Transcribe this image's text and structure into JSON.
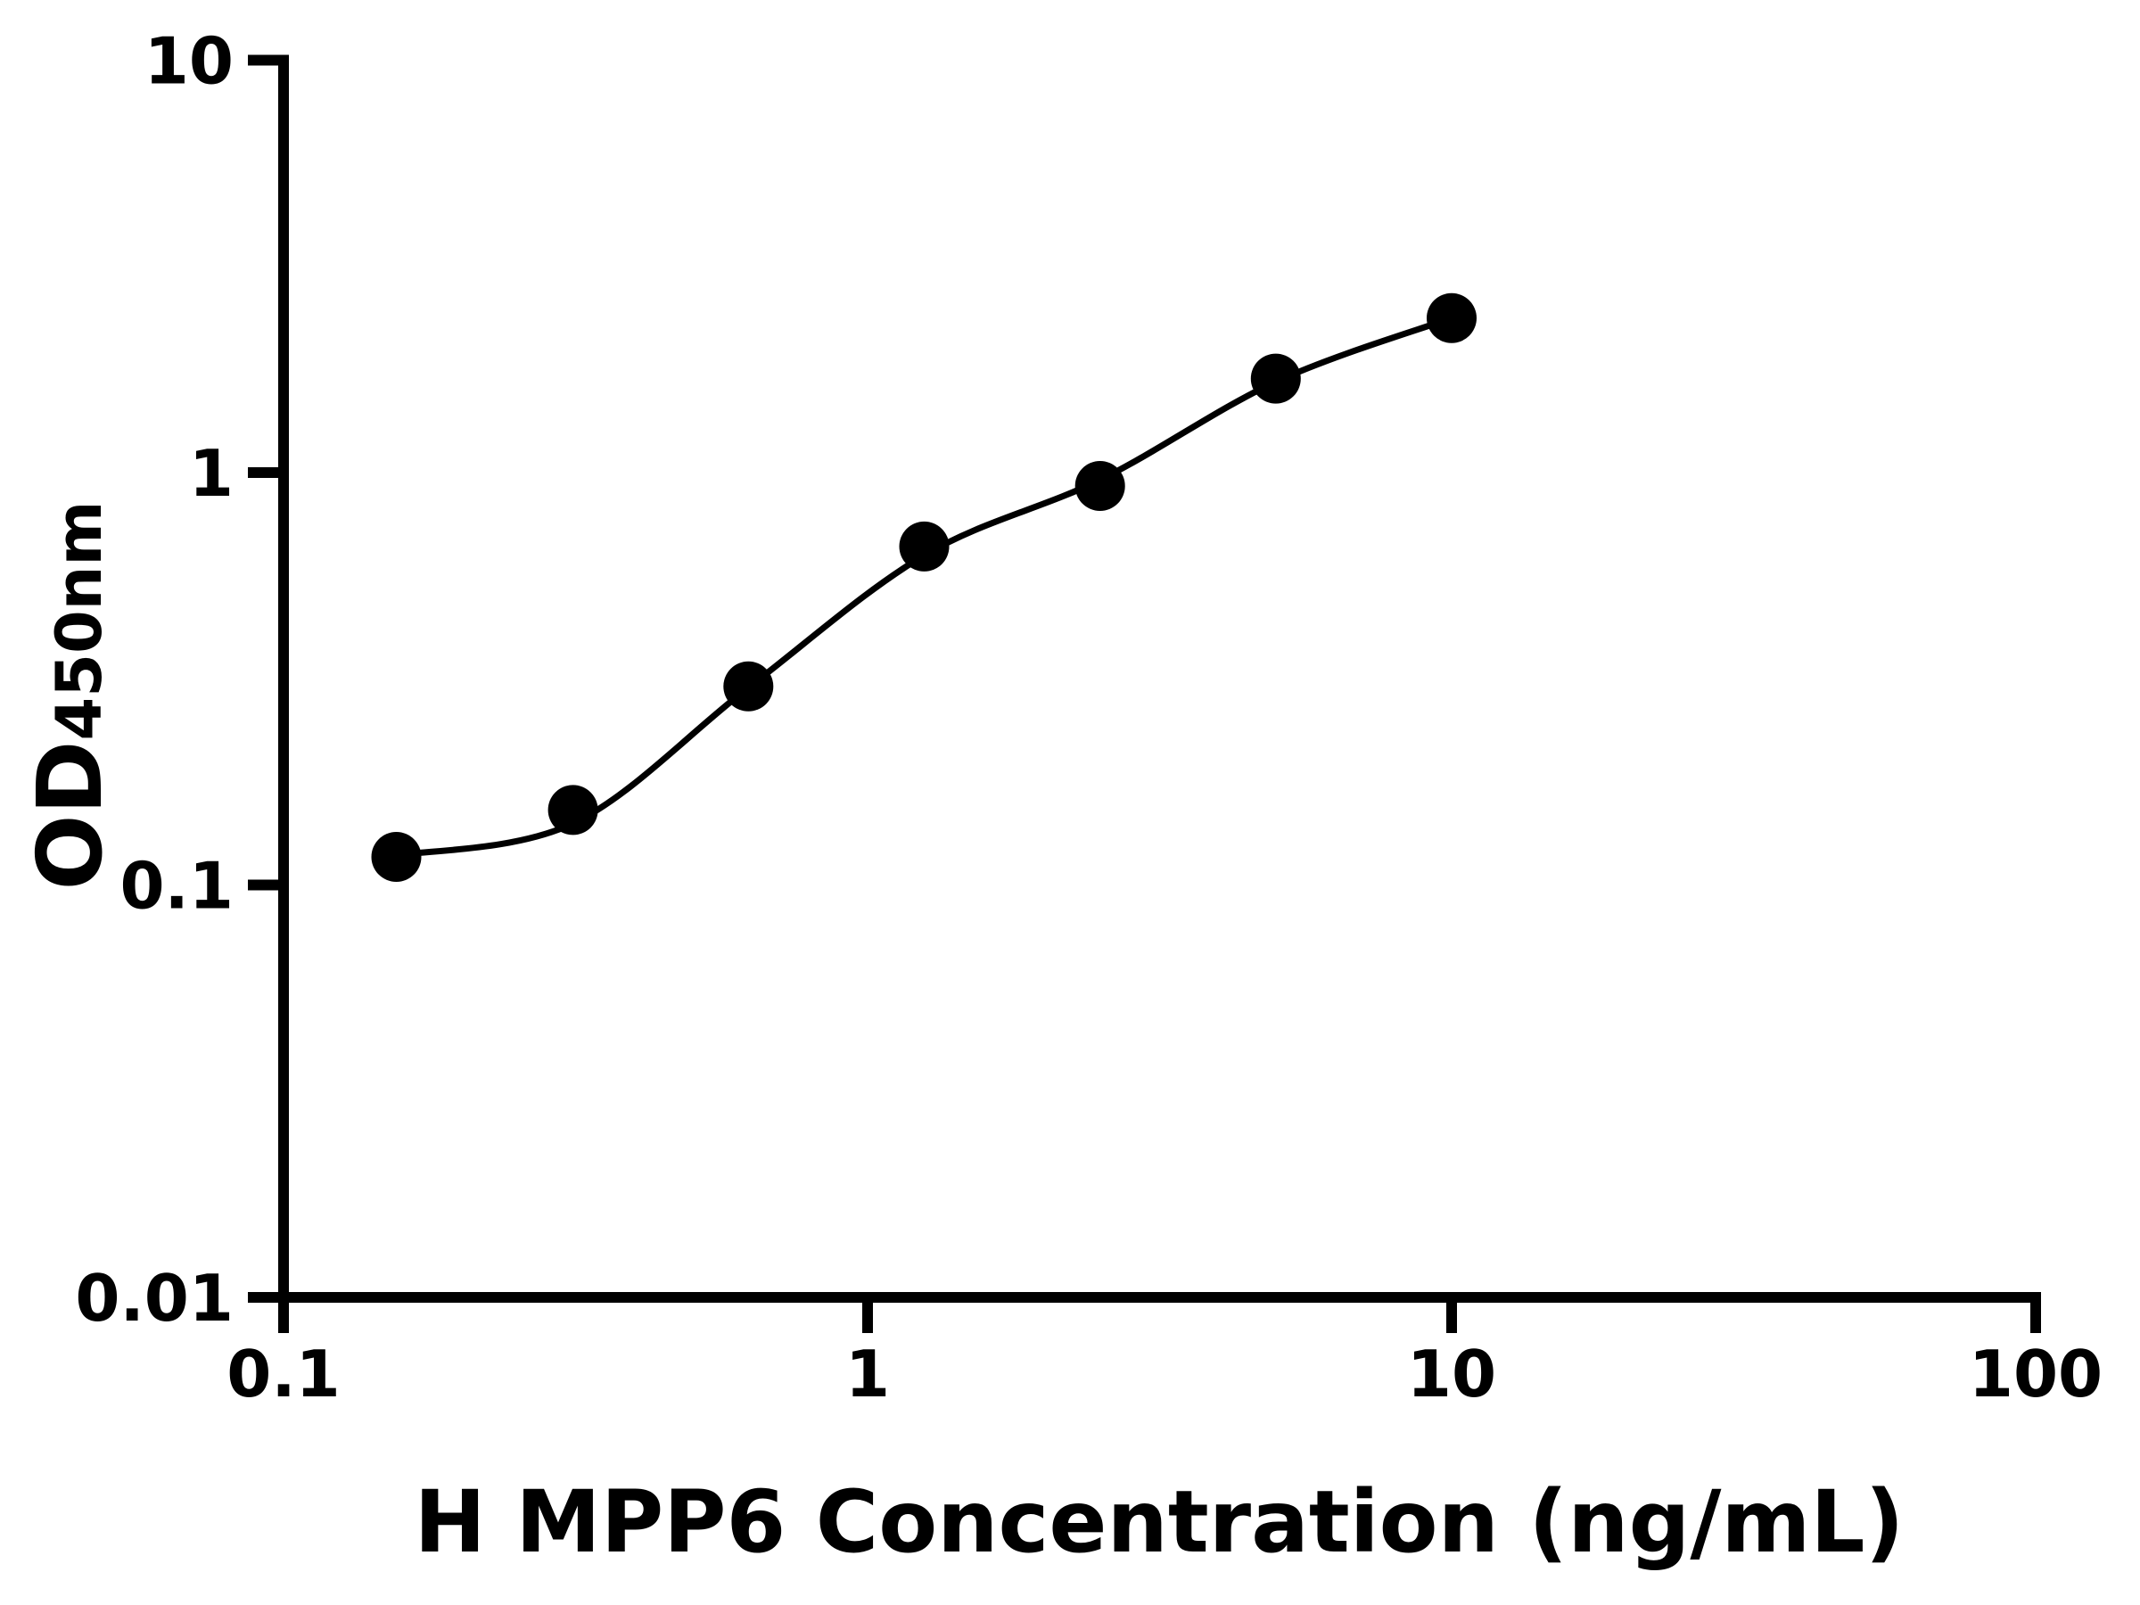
{
  "figure": {
    "background_color": "#ffffff",
    "ink_color": "#000000"
  },
  "chart_data": {
    "type": "scatter",
    "title": "",
    "xlabel": "H MPP6 Concentration (ng/mL)",
    "ylabel_main": "OD",
    "ylabel_sub": "450nm",
    "x_scale": "log",
    "y_scale": "log",
    "xlim": [
      0.1,
      100
    ],
    "ylim": [
      0.01,
      10
    ],
    "grid": false,
    "legend": null,
    "x_ticks": [
      {
        "value": 0.1,
        "label": "0.1"
      },
      {
        "value": 1,
        "label": "1"
      },
      {
        "value": 10,
        "label": "10"
      },
      {
        "value": 100,
        "label": "100"
      }
    ],
    "y_ticks": [
      {
        "value": 10,
        "label": "10"
      },
      {
        "value": 1,
        "label": "1"
      },
      {
        "value": 0.1,
        "label": "0.1"
      },
      {
        "value": 0.01,
        "label": "0.01"
      }
    ],
    "series": [
      {
        "name": "standard-points",
        "type": "scatter",
        "marker": "filled-circle",
        "color": "#000000",
        "points": [
          {
            "x": 0.156,
            "y": 0.117
          },
          {
            "x": 0.313,
            "y": 0.152
          },
          {
            "x": 0.625,
            "y": 0.303
          },
          {
            "x": 1.25,
            "y": 0.662
          },
          {
            "x": 2.5,
            "y": 0.928
          },
          {
            "x": 5,
            "y": 1.69
          },
          {
            "x": 10,
            "y": 2.37
          }
        ]
      },
      {
        "name": "fitted-curve",
        "type": "line",
        "color": "#000000",
        "points": [
          {
            "x": 0.156,
            "y": 0.118
          },
          {
            "x": 0.313,
            "y": 0.141
          },
          {
            "x": 0.625,
            "y": 0.301
          },
          {
            "x": 1.25,
            "y": 0.63
          },
          {
            "x": 2.5,
            "y": 0.96
          },
          {
            "x": 5,
            "y": 1.66
          },
          {
            "x": 10,
            "y": 2.37
          }
        ]
      }
    ]
  }
}
